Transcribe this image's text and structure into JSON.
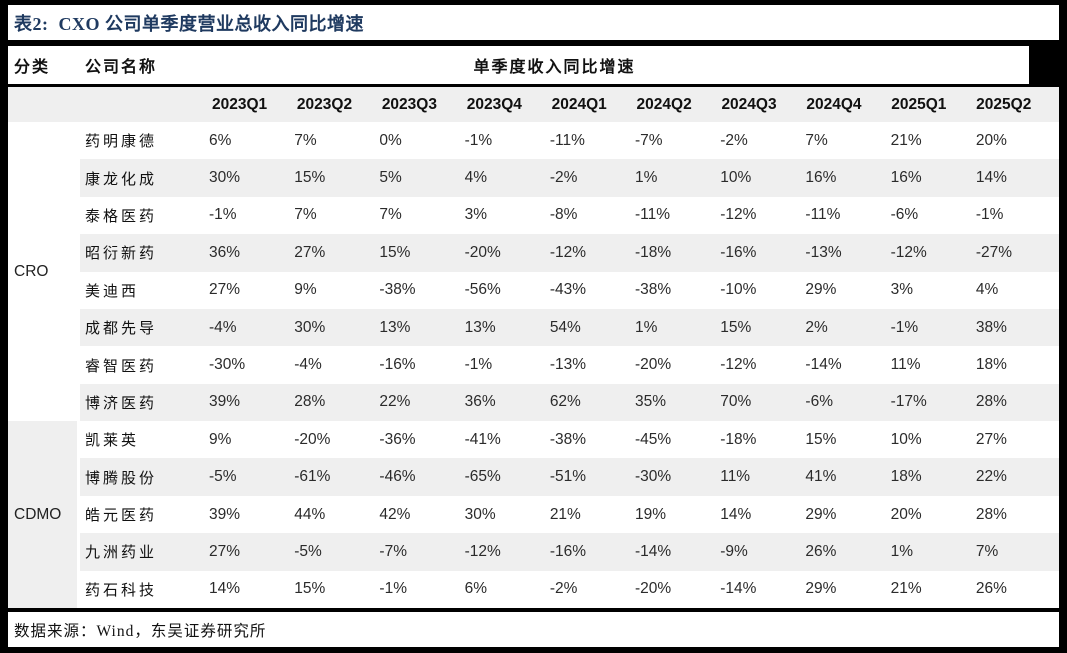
{
  "title": "表2:  CXO 公司单季度营业总收入同比增速",
  "header": {
    "category": "分类",
    "company": "公司名称",
    "metric": "单季度收入同比增速"
  },
  "quarters": [
    "2023Q1",
    "2023Q2",
    "2023Q3",
    "2023Q4",
    "2024Q1",
    "2024Q2",
    "2024Q3",
    "2024Q4",
    "2025Q1",
    "2025Q2"
  ],
  "table": {
    "groups": [
      {
        "label": "CRO",
        "shaded_cell": false,
        "companies": [
          {
            "name": "药明康德",
            "values": [
              "6%",
              "7%",
              "0%",
              "-1%",
              "-11%",
              "-7%",
              "-2%",
              "7%",
              "21%",
              "20%"
            ]
          },
          {
            "name": "康龙化成",
            "values": [
              "30%",
              "15%",
              "5%",
              "4%",
              "-2%",
              "1%",
              "10%",
              "16%",
              "16%",
              "14%"
            ]
          },
          {
            "name": "泰格医药",
            "values": [
              "-1%",
              "7%",
              "7%",
              "3%",
              "-8%",
              "-11%",
              "-12%",
              "-11%",
              "-6%",
              "-1%"
            ]
          },
          {
            "name": "昭衍新药",
            "values": [
              "36%",
              "27%",
              "15%",
              "-20%",
              "-12%",
              "-18%",
              "-16%",
              "-13%",
              "-12%",
              "-27%"
            ]
          },
          {
            "name": "美迪西",
            "values": [
              "27%",
              "9%",
              "-38%",
              "-56%",
              "-43%",
              "-38%",
              "-10%",
              "29%",
              "3%",
              "4%"
            ]
          },
          {
            "name": "成都先导",
            "values": [
              "-4%",
              "30%",
              "13%",
              "13%",
              "54%",
              "1%",
              "15%",
              "2%",
              "-1%",
              "38%"
            ]
          },
          {
            "name": "睿智医药",
            "values": [
              "-30%",
              "-4%",
              "-16%",
              "-1%",
              "-13%",
              "-20%",
              "-12%",
              "-14%",
              "11%",
              "18%"
            ]
          },
          {
            "name": "博济医药",
            "values": [
              "39%",
              "28%",
              "22%",
              "36%",
              "62%",
              "35%",
              "70%",
              "-6%",
              "-17%",
              "28%"
            ]
          }
        ]
      },
      {
        "label": "CDMO",
        "shaded_cell": true,
        "companies": [
          {
            "name": "凯莱英",
            "values": [
              "9%",
              "-20%",
              "-36%",
              "-41%",
              "-38%",
              "-45%",
              "-18%",
              "15%",
              "10%",
              "27%"
            ]
          },
          {
            "name": "博腾股份",
            "values": [
              "-5%",
              "-61%",
              "-46%",
              "-65%",
              "-51%",
              "-30%",
              "11%",
              "41%",
              "18%",
              "22%"
            ]
          },
          {
            "name": "皓元医药",
            "values": [
              "39%",
              "44%",
              "42%",
              "30%",
              "21%",
              "19%",
              "14%",
              "29%",
              "20%",
              "28%"
            ]
          },
          {
            "name": "九洲药业",
            "values": [
              "27%",
              "-5%",
              "-7%",
              "-12%",
              "-16%",
              "-14%",
              "-9%",
              "26%",
              "1%",
              "7%"
            ]
          },
          {
            "name": "药石科技",
            "values": [
              "14%",
              "15%",
              "-1%",
              "6%",
              "-2%",
              "-20%",
              "-14%",
              "29%",
              "21%",
              "26%"
            ]
          }
        ]
      }
    ]
  },
  "footer": {
    "source": "数据来源：Wind，东吴证券研究所"
  },
  "colors": {
    "title": "#1f3a60",
    "row_shade": "#efefef",
    "frame": "#000000"
  }
}
